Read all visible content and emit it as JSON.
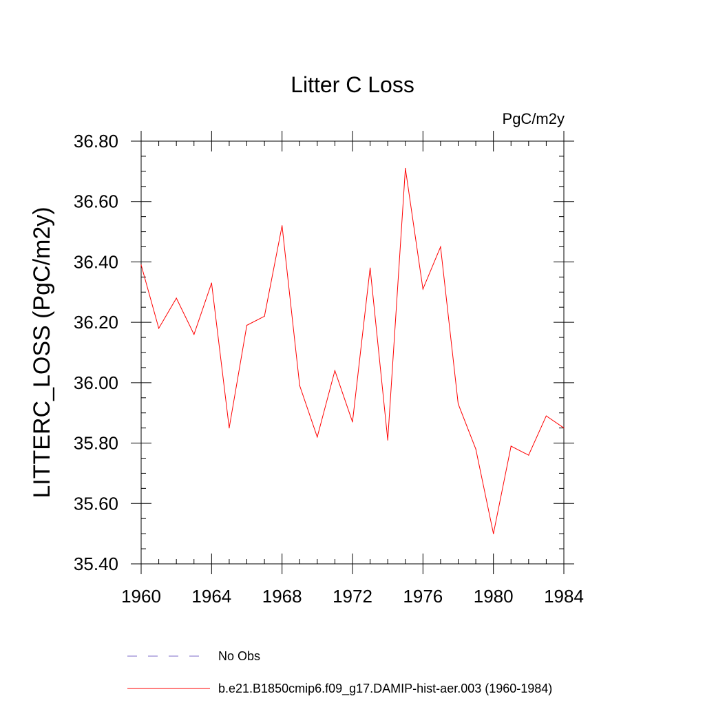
{
  "chart_data": {
    "type": "line",
    "title": "Litter C Loss",
    "units_label": "PgC/m2y",
    "xlabel": "",
    "ylabel": "LITTERC_LOSS  (PgC/m2y)",
    "xlim": [
      1960,
      1984
    ],
    "ylim": [
      35.4,
      36.8
    ],
    "x_ticks": [
      1960,
      1964,
      1968,
      1972,
      1976,
      1980,
      1984
    ],
    "x_tick_labels": [
      "1960",
      "1964",
      "1968",
      "1972",
      "1976",
      "1980",
      "1984"
    ],
    "y_ticks": [
      35.4,
      35.6,
      35.8,
      36.0,
      36.2,
      36.4,
      36.6,
      36.8
    ],
    "y_tick_labels": [
      "35.40",
      "35.60",
      "35.80",
      "36.00",
      "36.20",
      "36.40",
      "36.60",
      "36.80"
    ],
    "grid": false,
    "legend_position": "bottom",
    "series": [
      {
        "name": "b.e21.B1850cmip6.f09_g17.DAMIP-hist-aer.003 (1960-1984)",
        "color": "#ff0000",
        "style": "solid",
        "x": [
          1960,
          1961,
          1962,
          1963,
          1964,
          1965,
          1966,
          1967,
          1968,
          1969,
          1970,
          1971,
          1972,
          1973,
          1974,
          1975,
          1976,
          1977,
          1978,
          1979,
          1980,
          1981,
          1982,
          1983,
          1984
        ],
        "y": [
          36.39,
          36.18,
          36.28,
          36.16,
          36.33,
          35.85,
          36.19,
          36.22,
          36.52,
          35.99,
          35.82,
          36.04,
          35.87,
          36.38,
          35.81,
          36.71,
          36.31,
          36.45,
          35.93,
          35.78,
          35.5,
          35.79,
          35.76,
          35.89,
          35.85
        ]
      }
    ],
    "legend": [
      {
        "label": "No Obs",
        "color": "#7b68c8",
        "style": "dashed"
      },
      {
        "label": "b.e21.B1850cmip6.f09_g17.DAMIP-hist-aer.003 (1960-1984)",
        "color": "#ff0000",
        "style": "solid"
      }
    ]
  }
}
